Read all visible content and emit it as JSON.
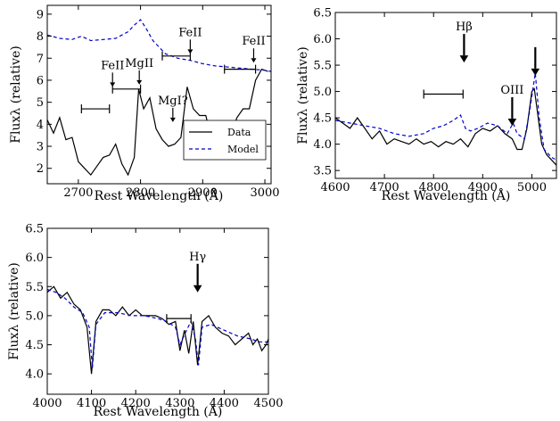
{
  "chart_data": [
    {
      "type": "line",
      "xlabel": "Rest Wavelength (Å)",
      "ylabel": "Fluxλ (relative)",
      "xlim": [
        2650,
        3010
      ],
      "ylim": [
        1.3,
        9.4
      ],
      "xticks": [
        2700,
        2800,
        2900,
        3000
      ],
      "yticks": [
        2,
        3,
        4,
        5,
        6,
        7,
        8,
        9
      ],
      "legend": {
        "placement": "lower-right",
        "entries": [
          "Data",
          "Model"
        ]
      },
      "series": [
        {
          "name": "Data",
          "style": "solid",
          "color": "#000000",
          "x": [
            2650,
            2660,
            2670,
            2680,
            2690,
            2700,
            2710,
            2720,
            2730,
            2740,
            2750,
            2760,
            2770,
            2780,
            2790,
            2797,
            2805,
            2815,
            2825,
            2835,
            2845,
            2855,
            2865,
            2875,
            2885,
            2895,
            2905,
            2915,
            2925,
            2935,
            2945,
            2955,
            2965,
            2975,
            2985,
            2995,
            3005
          ],
          "y": [
            4.2,
            3.6,
            4.3,
            3.3,
            3.4,
            2.3,
            2.0,
            1.7,
            2.1,
            2.5,
            2.6,
            3.1,
            2.2,
            1.7,
            2.5,
            5.6,
            4.7,
            5.2,
            3.8,
            3.3,
            3.0,
            3.1,
            3.4,
            5.7,
            4.7,
            4.4,
            4.4,
            3.2,
            3.0,
            3.7,
            3.5,
            4.3,
            4.7,
            4.7,
            6.0,
            6.5,
            6.4
          ]
        },
        {
          "name": "Model",
          "style": "dashed",
          "color": "#0000cc",
          "x": [
            2650,
            2670,
            2690,
            2705,
            2720,
            2740,
            2760,
            2780,
            2790,
            2800,
            2810,
            2820,
            2840,
            2860,
            2880,
            2900,
            2920,
            2940,
            2960,
            2980,
            3000,
            3010
          ],
          "y": [
            8.05,
            7.9,
            7.85,
            8.0,
            7.8,
            7.85,
            7.9,
            8.2,
            8.5,
            8.75,
            8.3,
            7.8,
            7.2,
            7.0,
            6.9,
            6.75,
            6.65,
            6.6,
            6.55,
            6.5,
            6.45,
            6.4
          ]
        }
      ],
      "annotations": [
        {
          "label": "FeII",
          "x": 2755,
          "arrow_tip_y": 5.7
        },
        {
          "label": "MgII",
          "x": 2798,
          "arrow_tip_y": 5.8
        },
        {
          "label": "FeII",
          "x": 2880,
          "arrow_tip_y": 7.2
        },
        {
          "label": "MgI?",
          "x": 2852,
          "arrow_tip_y": 4.1
        },
        {
          "label": "FeII",
          "x": 2982,
          "arrow_tip_y": 6.8
        }
      ],
      "range_bars": [
        {
          "x1": 2705,
          "x2": 2750,
          "y": 4.7
        },
        {
          "x1": 2755,
          "x2": 2800,
          "y": 5.6
        },
        {
          "x1": 2835,
          "x2": 2880,
          "y": 7.1
        },
        {
          "x1": 2935,
          "x2": 2985,
          "y": 6.5
        }
      ]
    },
    {
      "type": "line",
      "xlabel": "Rest Wavelength (Å)",
      "ylabel": "Fluxλ (relative)",
      "xlim": [
        4600,
        5050
      ],
      "ylim": [
        3.35,
        6.5
      ],
      "xticks": [
        4600,
        4700,
        4800,
        4900,
        5000
      ],
      "yticks": [
        3.5,
        4.0,
        4.5,
        5.0,
        5.5,
        6.0,
        6.5
      ],
      "series": [
        {
          "name": "Data",
          "style": "solid",
          "color": "#000000",
          "x": [
            4600,
            4615,
            4630,
            4645,
            4660,
            4675,
            4690,
            4705,
            4720,
            4735,
            4750,
            4765,
            4780,
            4795,
            4810,
            4825,
            4840,
            4855,
            4870,
            4885,
            4900,
            4915,
            4930,
            4945,
            4960,
            4970,
            4980,
            4990,
            5000,
            5005,
            5010,
            5020,
            5030,
            5040,
            5050
          ],
          "y": [
            4.5,
            4.4,
            4.3,
            4.5,
            4.3,
            4.1,
            4.25,
            4.0,
            4.1,
            4.05,
            4.0,
            4.1,
            4.0,
            4.05,
            3.95,
            4.05,
            4.0,
            4.1,
            3.95,
            4.2,
            4.3,
            4.25,
            4.35,
            4.2,
            4.1,
            3.9,
            3.9,
            4.3,
            5.0,
            5.05,
            4.7,
            4.0,
            3.8,
            3.7,
            3.6
          ]
        },
        {
          "name": "Model",
          "style": "dashed",
          "color": "#0000cc",
          "x": [
            4600,
            4630,
            4660,
            4690,
            4720,
            4750,
            4780,
            4800,
            4820,
            4840,
            4855,
            4865,
            4875,
            4890,
            4910,
            4930,
            4950,
            4962,
            4970,
            4985,
            4995,
            5007,
            5015,
            5025,
            5040,
            5050
          ],
          "y": [
            4.45,
            4.4,
            4.35,
            4.3,
            4.2,
            4.15,
            4.2,
            4.3,
            4.35,
            4.45,
            4.55,
            4.3,
            4.25,
            4.3,
            4.4,
            4.35,
            4.2,
            4.4,
            4.2,
            4.1,
            4.6,
            5.35,
            4.5,
            3.9,
            3.75,
            3.7
          ]
        }
      ],
      "annotations": [
        {
          "label": "Hβ",
          "x": 4862,
          "arrow_tip_y": 5.55
        },
        {
          "label": "OIII",
          "x": 4960,
          "arrow_tip_y": 4.35
        },
        {
          "label": "",
          "x": 5007,
          "arrow_tip_y": 5.3
        }
      ],
      "range_bars": [
        {
          "x1": 4780,
          "x2": 4860,
          "y": 4.95
        }
      ]
    },
    {
      "type": "line",
      "xlabel": "Rest Wavelength (Å)",
      "ylabel": "Fluxλ (relative)",
      "xlim": [
        4000,
        4500
      ],
      "ylim": [
        3.65,
        6.5
      ],
      "xticks": [
        4000,
        4100,
        4200,
        4300,
        4400,
        4500
      ],
      "yticks": [
        4.0,
        4.5,
        5.0,
        5.5,
        6.0,
        6.5
      ],
      "series": [
        {
          "name": "Data",
          "style": "solid",
          "color": "#000000",
          "x": [
            4000,
            4015,
            4030,
            4045,
            4060,
            4075,
            4090,
            4100,
            4110,
            4125,
            4140,
            4155,
            4170,
            4185,
            4200,
            4215,
            4230,
            4245,
            4260,
            4275,
            4290,
            4300,
            4310,
            4320,
            4330,
            4340,
            4350,
            4365,
            4380,
            4395,
            4410,
            4425,
            4440,
            4455,
            4465,
            4475,
            4485,
            4495,
            4500
          ],
          "y": [
            5.4,
            5.5,
            5.3,
            5.4,
            5.2,
            5.1,
            4.8,
            4.0,
            4.9,
            5.1,
            5.1,
            5.0,
            5.15,
            5.0,
            5.1,
            5.0,
            5.0,
            5.0,
            4.95,
            4.85,
            4.9,
            4.4,
            4.75,
            4.35,
            4.9,
            4.15,
            4.9,
            5.0,
            4.8,
            4.7,
            4.65,
            4.5,
            4.6,
            4.7,
            4.5,
            4.6,
            4.4,
            4.5,
            4.6
          ]
        },
        {
          "name": "Model",
          "style": "dashed",
          "color": "#0000cc",
          "x": [
            4000,
            4020,
            4040,
            4060,
            4080,
            4095,
            4102,
            4110,
            4130,
            4160,
            4190,
            4220,
            4250,
            4270,
            4290,
            4300,
            4315,
            4325,
            4335,
            4342,
            4350,
            4370,
            4400,
            4430,
            4460,
            4480,
            4500
          ],
          "y": [
            5.45,
            5.4,
            5.3,
            5.15,
            5.05,
            4.8,
            4.1,
            4.85,
            5.05,
            5.05,
            5.0,
            5.0,
            4.95,
            4.9,
            4.8,
            4.5,
            4.75,
            4.9,
            4.6,
            4.15,
            4.8,
            4.85,
            4.75,
            4.65,
            4.6,
            4.55,
            4.55
          ]
        }
      ],
      "annotations": [
        {
          "label": "Hγ",
          "x": 4340,
          "arrow_tip_y": 5.4
        }
      ],
      "range_bars": [
        {
          "x1": 4270,
          "x2": 4325,
          "y": 4.95
        }
      ]
    }
  ]
}
